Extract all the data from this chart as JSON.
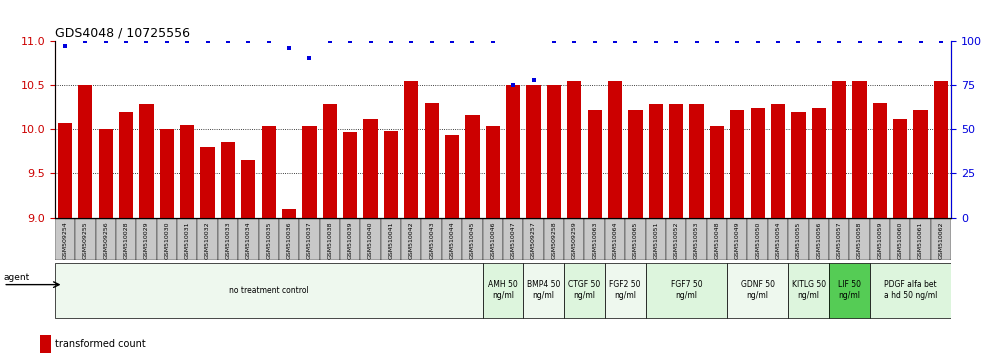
{
  "title": "GDS4048 / 10725556",
  "samples": [
    "GSM509254",
    "GSM509255",
    "GSM509256",
    "GSM510028",
    "GSM510029",
    "GSM510030",
    "GSM510031",
    "GSM510032",
    "GSM510033",
    "GSM510034",
    "GSM510035",
    "GSM510036",
    "GSM510037",
    "GSM510038",
    "GSM510039",
    "GSM510040",
    "GSM510041",
    "GSM510042",
    "GSM510043",
    "GSM510044",
    "GSM510045",
    "GSM510046",
    "GSM510047",
    "GSM509257",
    "GSM509258",
    "GSM509259",
    "GSM510063",
    "GSM510064",
    "GSM510065",
    "GSM510051",
    "GSM510052",
    "GSM510053",
    "GSM510048",
    "GSM510049",
    "GSM510050",
    "GSM510054",
    "GSM510055",
    "GSM510056",
    "GSM510057",
    "GSM510058",
    "GSM510059",
    "GSM510060",
    "GSM510061",
    "GSM510062"
  ],
  "bar_values": [
    10.07,
    10.5,
    10.0,
    10.2,
    10.28,
    10.0,
    10.05,
    9.8,
    9.85,
    9.65,
    10.04,
    9.1,
    10.04,
    10.28,
    9.97,
    10.11,
    9.98,
    10.55,
    10.3,
    9.94,
    10.16,
    10.04,
    10.5,
    10.5,
    10.5,
    10.55,
    10.22,
    10.55,
    10.22,
    10.28,
    10.28,
    10.28,
    10.04,
    10.22,
    10.24,
    10.28,
    10.2,
    10.24,
    10.55,
    10.55,
    10.3,
    10.12,
    10.22,
    10.55
  ],
  "dot_values": [
    97,
    100,
    100,
    100,
    100,
    100,
    100,
    100,
    100,
    100,
    100,
    96,
    90,
    100,
    100,
    100,
    100,
    100,
    100,
    100,
    100,
    100,
    75,
    78,
    100,
    100,
    100,
    100,
    100,
    100,
    100,
    100,
    100,
    100,
    100,
    100,
    100,
    100,
    100,
    100,
    100,
    100,
    100,
    100
  ],
  "bar_color": "#CC0000",
  "dot_color": "#0000DD",
  "ylim_left": [
    9.0,
    11.0
  ],
  "ylim_right": [
    0,
    100
  ],
  "yticks_left": [
    9.0,
    9.5,
    10.0,
    10.5,
    11.0
  ],
  "yticks_right": [
    0,
    25,
    50,
    75,
    100
  ],
  "groups": [
    {
      "label": "no treatment control",
      "start": 0,
      "end": 21,
      "color": "#eef8ee"
    },
    {
      "label": "AMH 50\nng/ml",
      "start": 21,
      "end": 23,
      "color": "#ddf5dd"
    },
    {
      "label": "BMP4 50\nng/ml",
      "start": 23,
      "end": 25,
      "color": "#eef8ee"
    },
    {
      "label": "CTGF 50\nng/ml",
      "start": 25,
      "end": 27,
      "color": "#ddf5dd"
    },
    {
      "label": "FGF2 50\nng/ml",
      "start": 27,
      "end": 29,
      "color": "#eef8ee"
    },
    {
      "label": "FGF7 50\nng/ml",
      "start": 29,
      "end": 33,
      "color": "#ddf5dd"
    },
    {
      "label": "GDNF 50\nng/ml",
      "start": 33,
      "end": 36,
      "color": "#eef8ee"
    },
    {
      "label": "KITLG 50\nng/ml",
      "start": 36,
      "end": 38,
      "color": "#ddf5dd"
    },
    {
      "label": "LIF 50\nng/ml",
      "start": 38,
      "end": 40,
      "color": "#55cc55"
    },
    {
      "label": "PDGF alfa bet\na hd 50 ng/ml",
      "start": 40,
      "end": 44,
      "color": "#ddf5dd"
    }
  ],
  "bar_color_hex": "#CC0000",
  "dot_color_hex": "#0000DD",
  "left_axis_color": "#CC0000",
  "right_axis_color": "#0000DD"
}
